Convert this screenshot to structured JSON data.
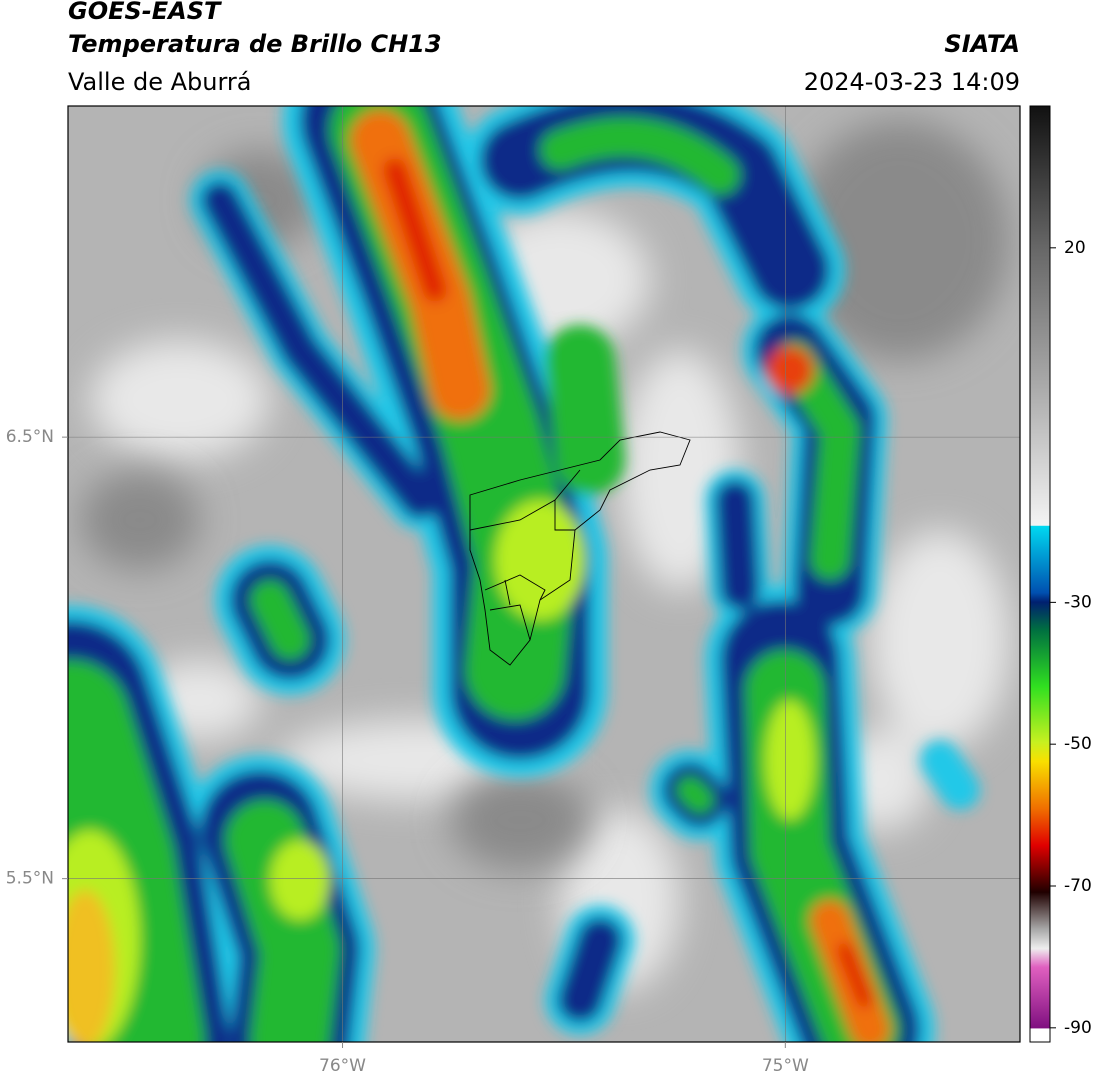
{
  "header": {
    "title": "GOES-EAST",
    "subtitle": "Temperatura de Brillo CH13",
    "region": "Valle de Aburrá",
    "source": "SIATA",
    "datetime": "2024-03-23 14:09"
  },
  "map": {
    "xlim": [
      -76.62,
      -74.47
    ],
    "ylim": [
      5.13,
      7.25
    ],
    "xticks": [
      {
        "value": -76,
        "label": "76°W"
      },
      {
        "value": -75,
        "label": "75°W"
      }
    ],
    "yticks": [
      {
        "value": 6.5,
        "label": "6.5°N"
      },
      {
        "value": 5.5,
        "label": "5.5°N"
      }
    ],
    "grid": true
  },
  "colorbar": {
    "lim": [
      -92,
      40
    ],
    "ticks": [
      20,
      -30,
      -50,
      -70,
      -90
    ]
  }
}
